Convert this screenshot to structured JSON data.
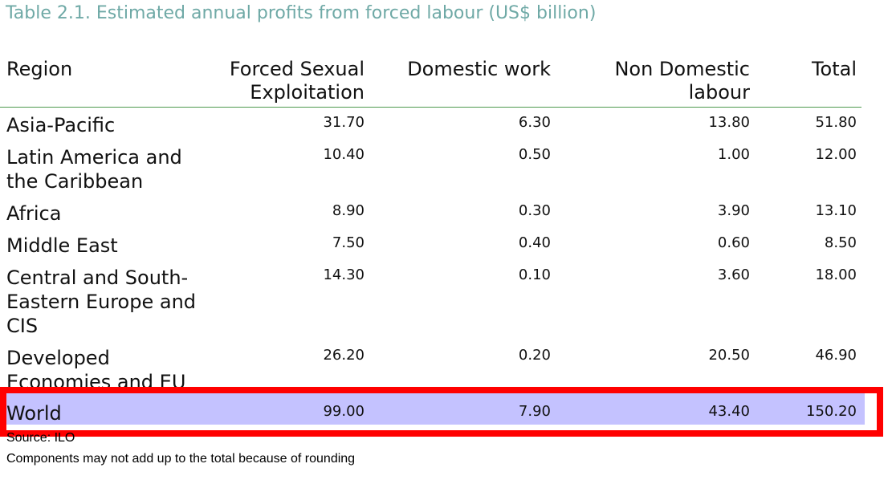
{
  "caption": "Table 2.1. Estimated annual profits from forced labour (US$ billion)",
  "headers": {
    "region": "Region",
    "sexual_line1": "Forced Sexual",
    "sexual_line2": "Exploitation",
    "domestic": "Domestic work",
    "nondomestic_line1": "Non Domestic",
    "nondomestic_line2": "labour",
    "total": "Total"
  },
  "rows": [
    {
      "region_lines": [
        "Asia-Pacific"
      ],
      "sexual": "31.70",
      "domestic": "6.30",
      "nondomestic": "13.80",
      "total": "51.80"
    },
    {
      "region_lines": [
        "Latin America and",
        "the Caribbean"
      ],
      "sexual": "10.40",
      "domestic": "0.50",
      "nondomestic": "1.00",
      "total": "12.00"
    },
    {
      "region_lines": [
        "Africa"
      ],
      "sexual": "8.90",
      "domestic": "0.30",
      "nondomestic": "3.90",
      "total": "13.10"
    },
    {
      "region_lines": [
        "Middle East"
      ],
      "sexual": "7.50",
      "domestic": "0.40",
      "nondomestic": "0.60",
      "total": "8.50"
    },
    {
      "region_lines": [
        "Central and South-",
        "Eastern Europe and",
        "CIS"
      ],
      "sexual": "14.30",
      "domestic": "0.10",
      "nondomestic": "3.60",
      "total": "18.00"
    },
    {
      "region_lines": [
        "Developed",
        "Economies and EU"
      ],
      "sexual": "26.20",
      "domestic": "0.20",
      "nondomestic": "20.50",
      "total": "46.90"
    }
  ],
  "world": {
    "region": "World",
    "sexual": "99.00",
    "domestic": "7.90",
    "nondomestic": "43.40",
    "total": "150.20"
  },
  "notes": {
    "source": "Source: ILO",
    "rounding": "Components may not add up to the total because of rounding"
  },
  "colors": {
    "caption": "#6fa9a6",
    "header_rule": "#4f9a4f",
    "world_highlight": "#c4c2ff",
    "annotation_box": "#ff0000"
  }
}
